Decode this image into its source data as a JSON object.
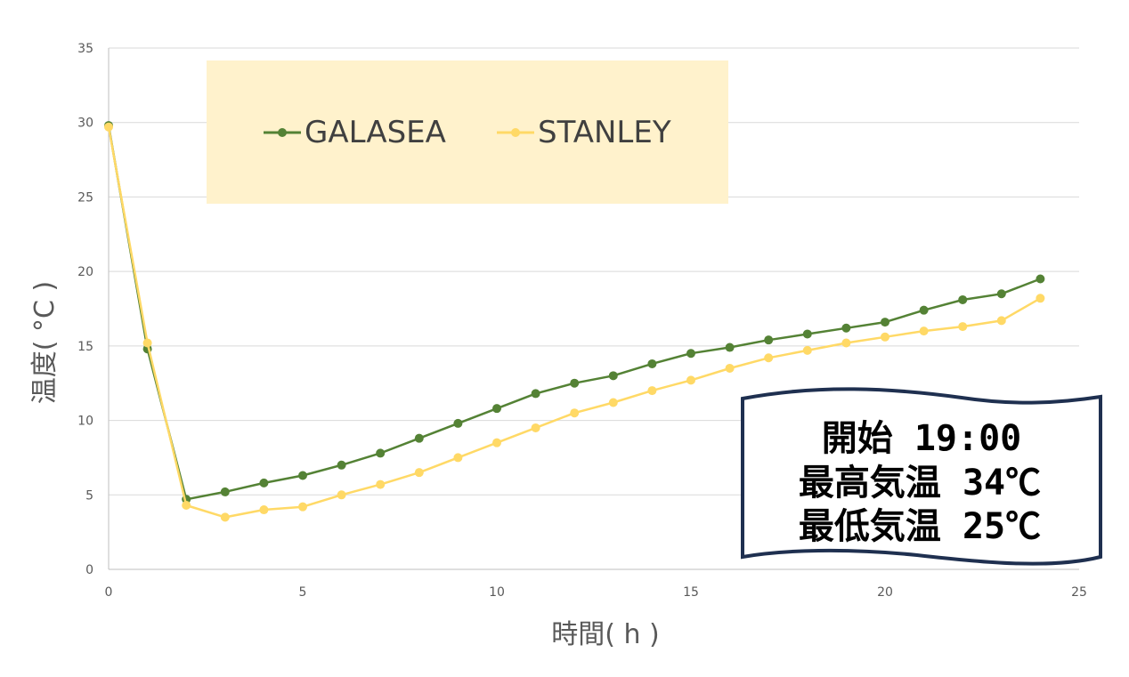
{
  "chart_data": {
    "type": "line",
    "title": "",
    "xlabel": "時間( h )",
    "ylabel": "温度( °C )",
    "xlim": [
      0,
      25
    ],
    "ylim": [
      0,
      35
    ],
    "xticks": [
      "0",
      "5",
      "10",
      "15",
      "20",
      "25"
    ],
    "yticks": [
      "0",
      "5",
      "10",
      "15",
      "20",
      "25",
      "30",
      "35"
    ],
    "grid": "horizontal",
    "legend": "top-left",
    "x": [
      0,
      1,
      2,
      3,
      4,
      5,
      6,
      7,
      8,
      9,
      10,
      11,
      12,
      13,
      14,
      15,
      16,
      17,
      18,
      19,
      20,
      21,
      22,
      23,
      24
    ],
    "series": [
      {
        "name": "GALASEA",
        "color": "#548235",
        "values": [
          29.8,
          14.8,
          4.7,
          5.2,
          5.8,
          6.3,
          7.0,
          7.8,
          8.8,
          9.8,
          10.8,
          11.8,
          12.5,
          13.0,
          13.8,
          14.5,
          14.9,
          15.4,
          15.8,
          16.2,
          16.6,
          17.4,
          18.1,
          18.5,
          19.5
        ]
      },
      {
        "name": "STANLEY",
        "color": "#FFD966",
        "values": [
          29.7,
          15.2,
          4.3,
          3.5,
          4.0,
          4.2,
          5.0,
          5.7,
          6.5,
          7.5,
          8.5,
          9.5,
          10.5,
          11.2,
          12.0,
          12.7,
          13.5,
          14.2,
          14.7,
          15.2,
          15.6,
          16.0,
          16.3,
          16.7,
          18.2
        ]
      }
    ],
    "annotation": {
      "lines": [
        "開始 19:00",
        "最高気温 34℃",
        "最低気温 25℃"
      ]
    }
  },
  "colors": {
    "legend_bg": "#FFF2CC",
    "note_border": "#1F3050",
    "grid": "#D9D9D9",
    "axis": "#BFBFBF"
  }
}
